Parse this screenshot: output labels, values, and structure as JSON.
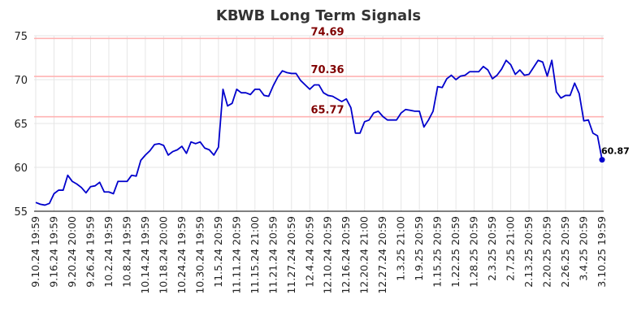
{
  "chart_data": {
    "type": "line",
    "title": "KBWB Long Term Signals",
    "xlabel": "",
    "ylabel": "",
    "ylim": [
      55,
      75
    ],
    "yticks": [
      55,
      60,
      65,
      70,
      75
    ],
    "grid": true,
    "legend": "none",
    "x_tick_labels": [
      "9.10.24 19:59",
      "9.16.24 19:59",
      "9.20.24 20:00",
      "9.26.24 19:59",
      "10.2.24 19:59",
      "10.8.24 19:59",
      "10.14.24 19:59",
      "10.18.24 20:00",
      "10.24.24 19:59",
      "10.30.24 19:59",
      "11.5.24 20:59",
      "11.11.24 20:59",
      "11.15.24 21:00",
      "11.21.24 20:59",
      "11.27.24 20:59",
      "12.4.24 20:59",
      "12.10.24 20:59",
      "12.16.24 20:59",
      "12.20.24 21:00",
      "12.27.24 20:59",
      "1.3.25 21:00",
      "1.9.25 20:59",
      "1.15.25 20:59",
      "1.22.25 20:59",
      "1.28.25 20:59",
      "2.3.25 20:59",
      "2.7.25 21:00",
      "2.13.25 20:59",
      "2.20.25 20:59",
      "2.26.25 20:59",
      "3.4.25 20:59",
      "3.10.25 19:59"
    ],
    "levels": [
      {
        "value": 74.69,
        "label": "74.69"
      },
      {
        "value": 70.36,
        "label": "70.36"
      },
      {
        "value": 65.77,
        "label": "65.77"
      }
    ],
    "series": [
      {
        "color": "#0000cc",
        "values": [
          56.0,
          55.8,
          55.7,
          55.9,
          57.0,
          57.4,
          57.4,
          59.1,
          58.4,
          58.1,
          57.7,
          57.1,
          57.8,
          57.9,
          58.3,
          57.2,
          57.2,
          57.0,
          58.4,
          58.4,
          58.4,
          59.1,
          59.0,
          60.8,
          61.4,
          61.9,
          62.6,
          62.7,
          62.5,
          61.4,
          61.8,
          62.0,
          62.4,
          61.6,
          62.9,
          62.7,
          62.9,
          62.2,
          62.0,
          61.4,
          62.3,
          68.9,
          67.0,
          67.3,
          68.9,
          68.5,
          68.5,
          68.3,
          68.9,
          68.9,
          68.2,
          68.1,
          69.3,
          70.3,
          71.0,
          70.8,
          70.7,
          70.7,
          69.9,
          69.4,
          68.9,
          69.4,
          69.4,
          68.5,
          68.2,
          68.1,
          67.8,
          67.5,
          67.8,
          66.8,
          63.9,
          63.9,
          65.2,
          65.4,
          66.2,
          66.4,
          65.8,
          65.4,
          65.4,
          65.4,
          66.2,
          66.6,
          66.5,
          66.4,
          66.4,
          64.6,
          65.4,
          66.4,
          69.2,
          69.1,
          70.1,
          70.5,
          70.0,
          70.4,
          70.5,
          70.9,
          70.9,
          70.9,
          71.5,
          71.1,
          70.1,
          70.5,
          71.2,
          72.2,
          71.7,
          70.6,
          71.1,
          70.5,
          70.6,
          71.4,
          72.2,
          72.0,
          70.4,
          72.2,
          68.6,
          67.9,
          68.2,
          68.2,
          69.6,
          68.4,
          65.3,
          65.4,
          63.9,
          63.6,
          60.87
        ]
      }
    ],
    "last_point": {
      "value": 60.87,
      "label": "60.87"
    }
  }
}
